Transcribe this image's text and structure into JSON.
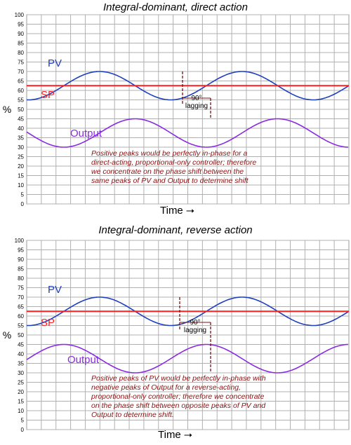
{
  "chart_data": [
    {
      "type": "line",
      "title": "Integral-dominant, direct action",
      "ylabel": "%",
      "xlabel": "Time",
      "ylim": [
        0,
        100
      ],
      "yticks": [
        0,
        5,
        10,
        15,
        20,
        25,
        30,
        35,
        40,
        45,
        50,
        55,
        60,
        65,
        70,
        75,
        80,
        85,
        90,
        95,
        100
      ],
      "grid": true,
      "series": [
        {
          "name": "PV",
          "color": "#1f3fbf",
          "kind": "sine",
          "center": 62.5,
          "amplitude": 7.5,
          "period": 6,
          "phase_deg": 0
        },
        {
          "name": "SP",
          "color": "#ff2020",
          "kind": "constant",
          "value": 62.5
        },
        {
          "name": "Output",
          "color": "#8a2be2",
          "kind": "sine",
          "center": 37.5,
          "amplitude": 7.5,
          "period": 6,
          "phase_deg": -90
        }
      ],
      "annotation_label": [
        "90°",
        "lagging"
      ],
      "annotation": "Positive peaks would be perfectly in-phase for a\ndirect-acting, proportional-only controller; therefore\nwe concentrate on the phase shift between the\nsame peaks of PV and Output to determine shift"
    },
    {
      "type": "line",
      "title": "Integral-dominant, reverse action",
      "ylabel": "%",
      "xlabel": "Time",
      "ylim": [
        0,
        100
      ],
      "yticks": [
        0,
        5,
        10,
        15,
        20,
        25,
        30,
        35,
        40,
        45,
        50,
        55,
        60,
        65,
        70,
        75,
        80,
        85,
        90,
        95,
        100
      ],
      "grid": true,
      "series": [
        {
          "name": "PV",
          "color": "#1f3fbf",
          "kind": "sine",
          "center": 62.5,
          "amplitude": 7.5,
          "period": 6,
          "phase_deg": 0
        },
        {
          "name": "SP",
          "color": "#ff2020",
          "kind": "constant",
          "value": 62.5
        },
        {
          "name": "Output",
          "color": "#8a2be2",
          "kind": "sine",
          "center": 37.5,
          "amplitude": 7.5,
          "period": 6,
          "phase_deg": 90
        }
      ],
      "annotation_label": [
        "90°",
        "lagging"
      ],
      "annotation": "Positive peaks of PV would be perfectly in-phase with\nnegative peaks of Output for a reverse-acting,\nproportional-only controller; therefore we concentrate\non the phase shift between opposite peaks of PV and\nOutput to determine shift."
    }
  ]
}
